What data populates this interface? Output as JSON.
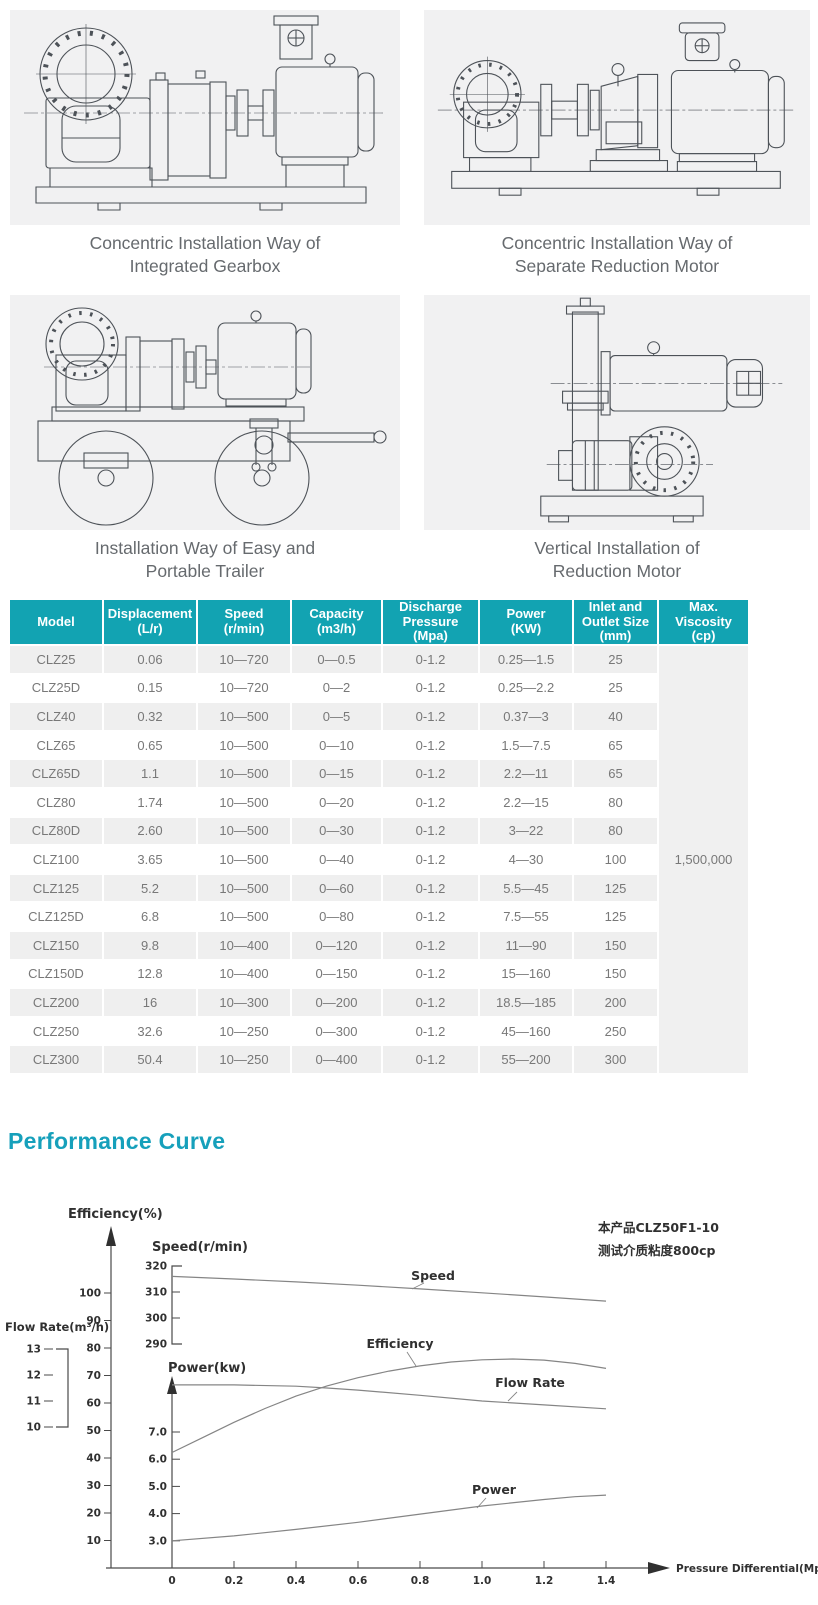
{
  "theme": {
    "teal_header": "#12a3b2",
    "title_teal": "#16a0bb",
    "panel_bg": "#f1f1f2"
  },
  "drawings": {
    "panels": [
      {
        "caption_line1": "Concentric Installation Way of",
        "caption_line2": "Integrated Gearbox"
      },
      {
        "caption_line1": "Concentric Installation Way of",
        "caption_line2": "Separate Reduction Motor"
      },
      {
        "caption_line1": "Installation Way of Easy and",
        "caption_line2": "Portable Trailer"
      },
      {
        "caption_line1": "Vertical Installation of",
        "caption_line2": "Reduction Motor"
      }
    ]
  },
  "table": {
    "headers": [
      {
        "lines": [
          "Model"
        ]
      },
      {
        "lines": [
          "Displacement",
          "(L/r)"
        ]
      },
      {
        "lines": [
          "Speed",
          "(r/min)"
        ]
      },
      {
        "lines": [
          "Capacity",
          "(m3/h)"
        ]
      },
      {
        "lines": [
          "Discharge",
          "Pressure",
          "(Mpa)"
        ]
      },
      {
        "lines": [
          "Power",
          "(KW)"
        ]
      },
      {
        "lines": [
          "Inlet and",
          "Outlet Size",
          "(mm)"
        ]
      },
      {
        "lines": [
          "Max. Viscosity",
          "(cp)"
        ]
      }
    ],
    "rows": [
      [
        "CLZ25",
        "0.06",
        "10—720",
        "0—0.5",
        "0-1.2",
        "0.25—1.5",
        "25"
      ],
      [
        "CLZ25D",
        "0.15",
        "10—720",
        "0—2",
        "0-1.2",
        "0.25—2.2",
        "25"
      ],
      [
        "CLZ40",
        "0.32",
        "10—500",
        "0—5",
        "0-1.2",
        "0.37—3",
        "40"
      ],
      [
        "CLZ65",
        "0.65",
        "10—500",
        "0—10",
        "0-1.2",
        "1.5—7.5",
        "65"
      ],
      [
        "CLZ65D",
        "1.1",
        "10—500",
        "0—15",
        "0-1.2",
        "2.2—11",
        "65"
      ],
      [
        "CLZ80",
        "1.74",
        "10—500",
        "0—20",
        "0-1.2",
        "2.2—15",
        "80"
      ],
      [
        "CLZ80D",
        "2.60",
        "10—500",
        "0—30",
        "0-1.2",
        "3—22",
        "80"
      ],
      [
        "CLZ100",
        "3.65",
        "10—500",
        "0—40",
        "0-1.2",
        "4—30",
        "100"
      ],
      [
        "CLZ125",
        "5.2",
        "10—500",
        "0—60",
        "0-1.2",
        "5.5—45",
        "125"
      ],
      [
        "CLZ125D",
        "6.8",
        "10—500",
        "0—80",
        "0-1.2",
        "7.5—55",
        "125"
      ],
      [
        "CLZ150",
        "9.8",
        "10—400",
        "0—120",
        "0-1.2",
        "11—90",
        "150"
      ],
      [
        "CLZ150D",
        "12.8",
        "10—400",
        "0—150",
        "0-1.2",
        "15—160",
        "150"
      ],
      [
        "CLZ200",
        "16",
        "10—300",
        "0—200",
        "0-1.2",
        "18.5—185",
        "200"
      ],
      [
        "CLZ250",
        "32.6",
        "10—250",
        "0—300",
        "0-1.2",
        "45—160",
        "250"
      ],
      [
        "CLZ300",
        "50.4",
        "10—250",
        "0—400",
        "0-1.2",
        "55—200",
        "300"
      ]
    ],
    "max_viscosity": "1,500,000"
  },
  "performance": {
    "title": "Performance Curve"
  },
  "chart_data": {
    "type": "line",
    "title": "Performance Curve",
    "xlabel": "Pressure Differential(Mpa)",
    "xlim": [
      0,
      1.4
    ],
    "x_ticks": [
      "0",
      "0.2",
      "0.4",
      "0.6",
      "0.8",
      "1.0",
      "1.2",
      "1.4"
    ],
    "grid": false,
    "annotation_lines": [
      "本产品CLZ50F1-10",
      "测试介质粘度800cp"
    ],
    "axes": {
      "efficiency": {
        "label": "Efficiency(%)",
        "ticks": [
          100,
          90,
          80,
          70,
          60,
          50,
          40,
          30,
          20,
          10
        ]
      },
      "speed": {
        "label": "Speed(r/min)",
        "ticks": [
          320,
          310,
          300,
          290
        ]
      },
      "flow": {
        "label": "Flow Rate(m³/h)",
        "ticks": [
          13,
          12,
          11,
          10
        ]
      },
      "power": {
        "label": "Power(kw)",
        "ticks": [
          "7.0",
          "6.0",
          "5.0",
          "4.0",
          "3.0"
        ]
      }
    },
    "series": [
      {
        "name": "Speed",
        "axis": "speed",
        "x": [
          0,
          0.2,
          0.4,
          0.6,
          0.8,
          1.0,
          1.2,
          1.4
        ],
        "values": [
          316,
          315,
          313.9,
          312.6,
          311.2,
          309.7,
          308.1,
          306.5
        ]
      },
      {
        "name": "Efficiency",
        "axis": "efficiency",
        "x": [
          0,
          0.1,
          0.2,
          0.3,
          0.4,
          0.5,
          0.6,
          0.7,
          0.8,
          0.9,
          1.0,
          1.1,
          1.2,
          1.3,
          1.4
        ],
        "values": [
          42,
          47.5,
          53,
          58,
          62.5,
          66.2,
          69.2,
          71.6,
          73.5,
          74.9,
          75.7,
          76,
          75.6,
          74.4,
          72.6
        ]
      },
      {
        "name": "Flow Rate",
        "axis": "flow",
        "x": [
          0,
          0.2,
          0.4,
          0.5,
          0.6,
          0.8,
          1.0,
          1.2,
          1.4
        ],
        "values": [
          11.62,
          11.62,
          11.57,
          11.5,
          11.42,
          11.22,
          11.0,
          10.85,
          10.7
        ]
      },
      {
        "name": "Power",
        "axis": "power",
        "x": [
          0,
          0.2,
          0.4,
          0.6,
          0.8,
          1.0,
          1.2,
          1.3,
          1.4
        ],
        "values": [
          3.0,
          3.18,
          3.42,
          3.68,
          3.98,
          4.28,
          4.52,
          4.62,
          4.68
        ]
      }
    ]
  }
}
